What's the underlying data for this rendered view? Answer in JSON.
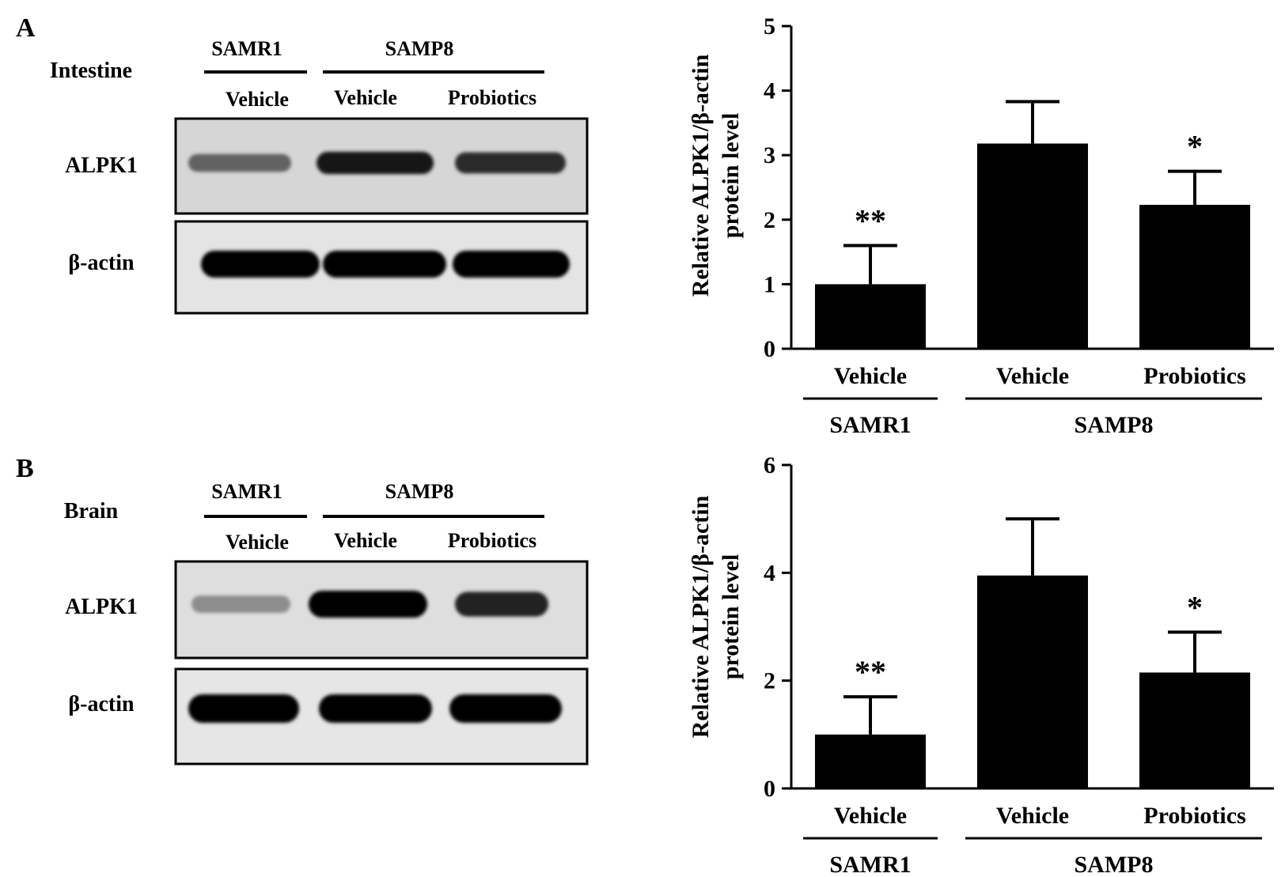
{
  "panels": [
    {
      "letter": "A",
      "tissue": "Intestine",
      "blot": {
        "strain_labels": [
          "SAMR1",
          "SAMP8"
        ],
        "lane_labels": [
          "Vehicle",
          "Vehicle",
          "Probiotics"
        ],
        "row_labels": [
          "ALPK1",
          "β-actin"
        ],
        "alpk1_band_intensity": [
          0.55,
          0.9,
          0.8
        ],
        "actin_band_intensity": [
          1.0,
          1.0,
          1.0
        ]
      }
    },
    {
      "letter": "B",
      "tissue": "Brain",
      "blot": {
        "strain_labels": [
          "SAMR1",
          "SAMP8"
        ],
        "lane_labels": [
          "Vehicle",
          "Vehicle",
          "Probiotics"
        ],
        "row_labels": [
          "ALPK1",
          "β-actin"
        ],
        "alpk1_band_intensity": [
          0.35,
          1.0,
          0.85
        ],
        "actin_band_intensity": [
          1.0,
          1.0,
          1.0
        ]
      }
    }
  ],
  "chart_data": [
    {
      "type": "bar",
      "ylabel_line1": "Relative ALPK1/β-actin",
      "ylabel_line2": "protein level",
      "categories": [
        "Vehicle",
        "Vehicle",
        "Probiotics"
      ],
      "groups": [
        {
          "name": "SAMR1",
          "span": [
            0,
            0
          ]
        },
        {
          "name": "SAMP8",
          "span": [
            1,
            2
          ]
        }
      ],
      "values": [
        1.0,
        3.18,
        2.23
      ],
      "errors": [
        0.6,
        0.65,
        0.52
      ],
      "annotations": [
        "**",
        "",
        "*"
      ],
      "ylim": [
        0,
        5
      ],
      "yticks": [
        0,
        1,
        2,
        3,
        4,
        5
      ],
      "bar_color": "#000000"
    },
    {
      "type": "bar",
      "ylabel_line1": "Relative ALPK1/β-actin",
      "ylabel_line2": "protein level",
      "categories": [
        "Vehicle",
        "Vehicle",
        "Probiotics"
      ],
      "groups": [
        {
          "name": "SAMR1",
          "span": [
            0,
            0
          ]
        },
        {
          "name": "SAMP8",
          "span": [
            1,
            2
          ]
        }
      ],
      "values": [
        1.0,
        3.95,
        2.15
      ],
      "errors": [
        0.7,
        1.05,
        0.75
      ],
      "annotations": [
        "**",
        "",
        "*"
      ],
      "ylim": [
        0,
        6
      ],
      "yticks": [
        0,
        2,
        4,
        6
      ],
      "bar_color": "#000000"
    }
  ]
}
